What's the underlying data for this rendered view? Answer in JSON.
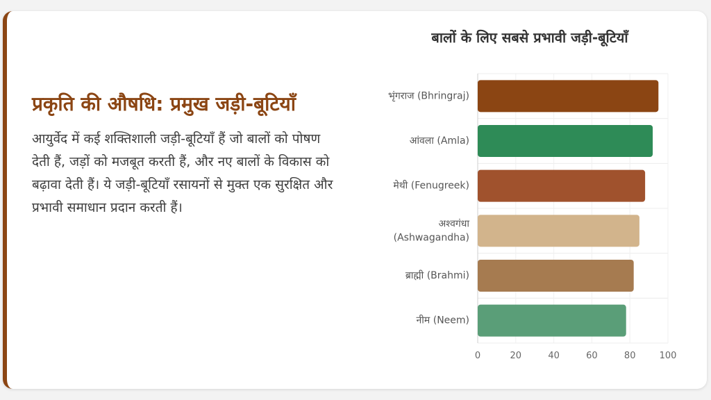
{
  "left": {
    "heading": "प्रकृति की औषधि: प्रमुख जड़ी-बूटियाँ",
    "body": "आयुर्वेद में कई शक्तिशाली जड़ी-बूटियाँ हैं जो बालों को पोषण देती हैं, जड़ों को मजबूत करती हैं, और नए बालों के विकास को बढ़ावा देती हैं। ये जड़ी-बूटियाँ रसायनों से मुक्त एक सुरक्षित और प्रभावी समाधान प्रदान करती हैं।"
  },
  "chart_data": {
    "type": "bar",
    "orientation": "horizontal",
    "title": "बालों के लिए सबसे प्रभावी जड़ी-बूटियाँ",
    "categories": [
      [
        "भृंगराज (Bhringraj)"
      ],
      [
        "आंवला (Amla)"
      ],
      [
        "मेथी (Fenugreek)"
      ],
      [
        "अश्वगंधा",
        "(Ashwagandha)"
      ],
      [
        "ब्राह्मी (Brahmi)"
      ],
      [
        "नीम (Neem)"
      ]
    ],
    "values": [
      95,
      92,
      88,
      85,
      82,
      78
    ],
    "colors": [
      "#8b4513",
      "#2e8b57",
      "#a0522d",
      "#d2b48c",
      "#a67b50",
      "#5a9e78"
    ],
    "xlim": [
      0,
      100
    ],
    "xticks": [
      0,
      20,
      40,
      60,
      80,
      100
    ],
    "grid": true,
    "legend": "none"
  }
}
